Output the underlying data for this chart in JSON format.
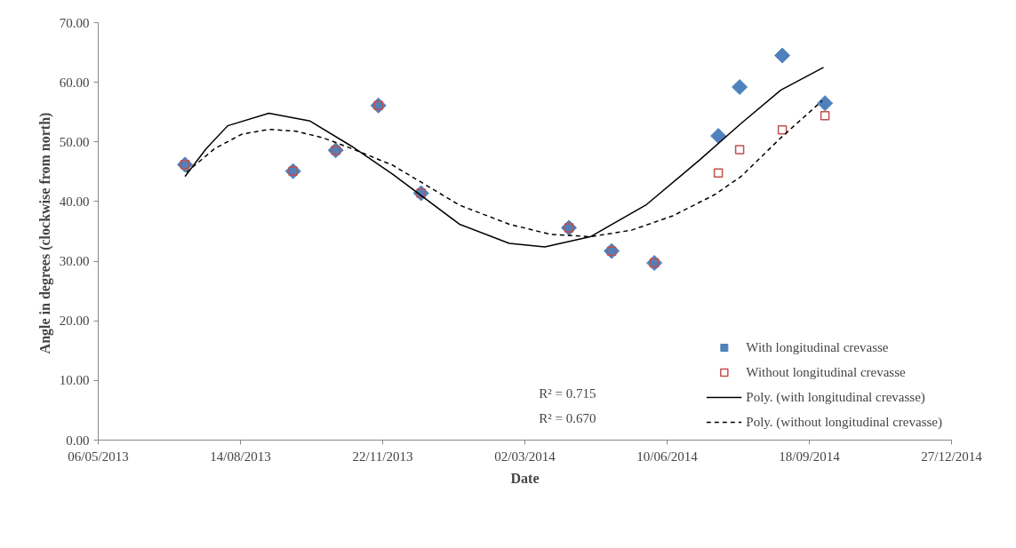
{
  "chart_data": {
    "type": "scatter",
    "xlabel": "Date",
    "ylabel": "Angle in degrees (clockwise  from north)",
    "x": [
      "2013-07-06",
      "2013-09-20",
      "2013-10-20",
      "2013-11-19",
      "2013-12-19",
      "2014-04-02",
      "2014-05-02",
      "2014-06-01",
      "2014-07-16",
      "2014-07-31",
      "2014-08-30",
      "2014-09-29"
    ],
    "series": [
      {
        "name": "With longitudinal crevasse",
        "marker": "diamond",
        "color": "#4f81bd",
        "values": [
          46.2,
          45.1,
          48.6,
          56.1,
          41.4,
          35.6,
          31.7,
          29.7,
          51.0,
          59.2,
          64.5,
          56.5
        ]
      },
      {
        "name": "Without longitudinal crevasse",
        "marker": "square",
        "color": "#c0504d",
        "values": [
          46.2,
          45.1,
          48.6,
          56.1,
          41.4,
          35.6,
          31.7,
          29.7,
          44.8,
          48.7,
          52.0,
          54.4
        ]
      },
      {
        "name": "Poly. (with longitudinal crevasse)",
        "type": "line",
        "line_style": "solid",
        "color": "#000000",
        "x": [
          "2013-07-06",
          "2013-07-21",
          "2013-08-05",
          "2013-09-03",
          "2013-10-02",
          "2013-10-31",
          "2013-11-29",
          "2014-01-15",
          "2014-02-19",
          "2014-03-16",
          "2014-04-17",
          "2014-05-26",
          "2014-07-03",
          "2014-08-01",
          "2014-08-29",
          "2014-09-28"
        ],
        "values": [
          44.2,
          48.9,
          52.7,
          54.8,
          53.5,
          49.3,
          44.6,
          36.2,
          33.0,
          32.4,
          34.1,
          39.4,
          47.0,
          53.1,
          58.7,
          62.5
        ]
      },
      {
        "name": "Poly. (without longitudinal crevasse)",
        "type": "line",
        "line_style": "dashed",
        "color": "#000000",
        "x": [
          "2013-07-07",
          "2013-07-27",
          "2013-08-15",
          "2013-09-03",
          "2013-09-22",
          "2013-10-11",
          "2013-10-31",
          "2013-11-29",
          "2014-01-15",
          "2014-02-19",
          "2014-03-20",
          "2014-04-17",
          "2014-05-16",
          "2014-06-14",
          "2014-07-13",
          "2014-08-01",
          "2014-08-29",
          "2014-09-27"
        ],
        "values": [
          44.9,
          48.9,
          51.3,
          52.1,
          51.8,
          50.7,
          48.9,
          46.1,
          39.4,
          36.2,
          34.5,
          34.1,
          35.2,
          37.6,
          41.1,
          44.2,
          50.7,
          56.9
        ]
      }
    ],
    "annotations": [
      "R² = 0.715",
      "R² = 0.670"
    ],
    "xlim": [
      "2013-05-06",
      "2014-12-27"
    ],
    "xticks": [
      {
        "value": "2013-05-06",
        "label": "06/05/2013"
      },
      {
        "value": "2013-08-14",
        "label": "14/08/2013"
      },
      {
        "value": "2013-11-22",
        "label": "22/11/2013"
      },
      {
        "value": "2014-03-02",
        "label": "02/03/2014"
      },
      {
        "value": "2014-06-10",
        "label": "10/06/2014"
      },
      {
        "value": "2014-09-18",
        "label": "18/09/2014"
      },
      {
        "value": "2014-12-27",
        "label": "27/12/2014"
      }
    ],
    "ylim": [
      0,
      70
    ],
    "yticks": [
      {
        "value": 0,
        "label": "0.00"
      },
      {
        "value": 10,
        "label": "10.00"
      },
      {
        "value": 20,
        "label": "20.00"
      },
      {
        "value": 30,
        "label": "30.00"
      },
      {
        "value": 40,
        "label": "40.00"
      },
      {
        "value": 50,
        "label": "50.00"
      },
      {
        "value": 60,
        "label": "60.00"
      },
      {
        "value": 70,
        "label": "70.00"
      }
    ],
    "grid": false,
    "legend": "bottom right"
  }
}
